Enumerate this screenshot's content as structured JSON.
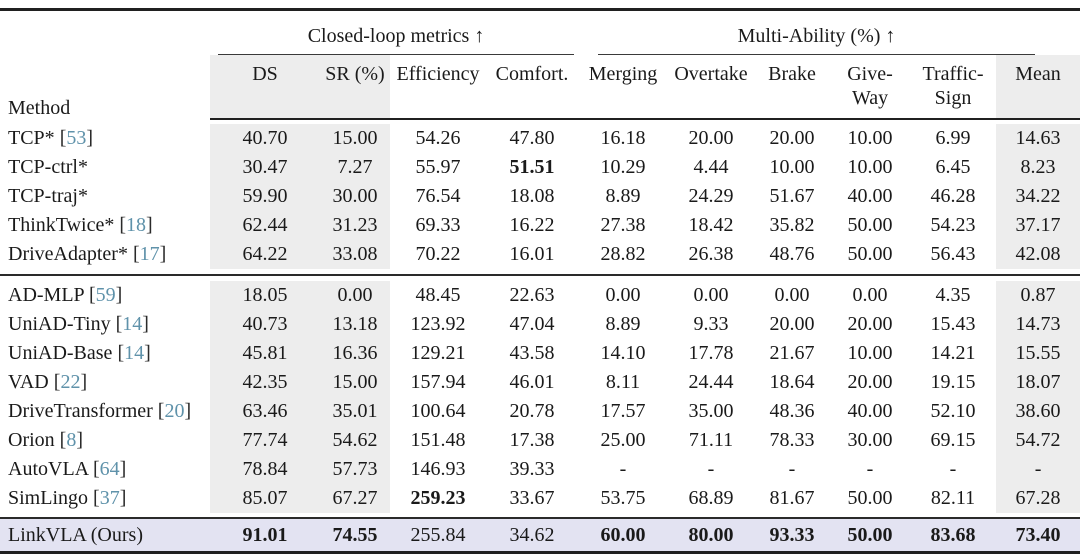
{
  "accent_colors": {
    "citation": "#5f92aa",
    "row_highlight": "#e3e3f2",
    "column_shade": "#ededed"
  },
  "table": {
    "method_header": "Method",
    "group_headers": {
      "closed_loop": "Closed-loop metrics ↑",
      "multi_ability": "Multi-Ability (%) ↑"
    },
    "columns": [
      "DS",
      "SR (%)",
      "Efficiency",
      "Comfort.",
      "Merging",
      "Overtake",
      "Brake",
      "Give-Way",
      "Traffic-Sign",
      "Mean"
    ],
    "groups": [
      {
        "rows": [
          {
            "method": "TCP*",
            "cite": "[53]",
            "values": [
              "40.70",
              "15.00",
              "54.26",
              "47.80",
              "16.18",
              "20.00",
              "20.00",
              "10.00",
              "6.99",
              "14.63"
            ],
            "bold": []
          },
          {
            "method": "TCP-ctrl*",
            "cite": "",
            "values": [
              "30.47",
              "7.27",
              "55.97",
              "51.51",
              "10.29",
              "4.44",
              "10.00",
              "10.00",
              "6.45",
              "8.23"
            ],
            "bold": [
              3
            ]
          },
          {
            "method": "TCP-traj*",
            "cite": "",
            "values": [
              "59.90",
              "30.00",
              "76.54",
              "18.08",
              "8.89",
              "24.29",
              "51.67",
              "40.00",
              "46.28",
              "34.22"
            ],
            "bold": []
          },
          {
            "method": "ThinkTwice*",
            "cite": "[18]",
            "values": [
              "62.44",
              "31.23",
              "69.33",
              "16.22",
              "27.38",
              "18.42",
              "35.82",
              "50.00",
              "54.23",
              "37.17"
            ],
            "bold": []
          },
          {
            "method": "DriveAdapter*",
            "cite": "[17]",
            "values": [
              "64.22",
              "33.08",
              "70.22",
              "16.01",
              "28.82",
              "26.38",
              "48.76",
              "50.00",
              "56.43",
              "42.08"
            ],
            "bold": []
          }
        ]
      },
      {
        "rows": [
          {
            "method": "AD-MLP",
            "cite": "[59]",
            "values": [
              "18.05",
              "0.00",
              "48.45",
              "22.63",
              "0.00",
              "0.00",
              "0.00",
              "0.00",
              "4.35",
              "0.87"
            ],
            "bold": []
          },
          {
            "method": "UniAD-Tiny",
            "cite": "[14]",
            "values": [
              "40.73",
              "13.18",
              "123.92",
              "47.04",
              "8.89",
              "9.33",
              "20.00",
              "20.00",
              "15.43",
              "14.73"
            ],
            "bold": []
          },
          {
            "method": "UniAD-Base",
            "cite": "[14]",
            "values": [
              "45.81",
              "16.36",
              "129.21",
              "43.58",
              "14.10",
              "17.78",
              "21.67",
              "10.00",
              "14.21",
              "15.55"
            ],
            "bold": []
          },
          {
            "method": "VAD",
            "cite": "[22]",
            "values": [
              "42.35",
              "15.00",
              "157.94",
              "46.01",
              "8.11",
              "24.44",
              "18.64",
              "20.00",
              "19.15",
              "18.07"
            ],
            "bold": []
          },
          {
            "method": "DriveTransformer",
            "cite": "[20]",
            "values": [
              "63.46",
              "35.01",
              "100.64",
              "20.78",
              "17.57",
              "35.00",
              "48.36",
              "40.00",
              "52.10",
              "38.60"
            ],
            "bold": []
          },
          {
            "method": "Orion",
            "cite": "[8]",
            "values": [
              "77.74",
              "54.62",
              "151.48",
              "17.38",
              "25.00",
              "71.11",
              "78.33",
              "30.00",
              "69.15",
              "54.72"
            ],
            "bold": []
          },
          {
            "method": "AutoVLA",
            "cite": "[64]",
            "values": [
              "78.84",
              "57.73",
              "146.93",
              "39.33",
              "-",
              "-",
              "-",
              "-",
              "-",
              "-"
            ],
            "bold": []
          },
          {
            "method": "SimLingo",
            "cite": "[37]",
            "values": [
              "85.07",
              "67.27",
              "259.23",
              "33.67",
              "53.75",
              "68.89",
              "81.67",
              "50.00",
              "82.11",
              "67.28"
            ],
            "bold": [
              2
            ]
          }
        ]
      },
      {
        "highlight": true,
        "rows": [
          {
            "method": "LinkVLA (Ours)",
            "cite": "",
            "values": [
              "91.01",
              "74.55",
              "255.84",
              "34.62",
              "60.00",
              "80.00",
              "93.33",
              "50.00",
              "83.68",
              "73.40"
            ],
            "bold": [
              0,
              1,
              4,
              5,
              6,
              7,
              8,
              9
            ]
          }
        ]
      }
    ]
  }
}
